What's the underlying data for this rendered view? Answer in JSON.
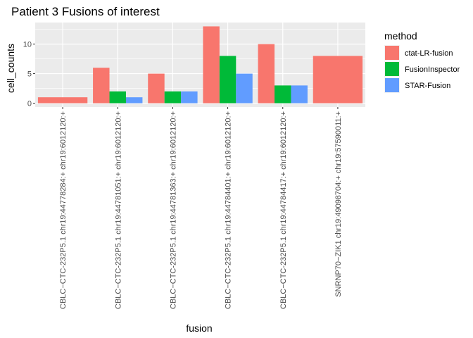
{
  "chart_data": {
    "type": "bar",
    "title": "Patient 3 Fusions of interest",
    "xlabel": "fusion",
    "ylabel": "cell_counts",
    "categories": [
      "CBLC−CTC-232P5.1 chr19:44778284:+ chr19:6012120:+",
      "CBLC−CTC-232P5.1 chr19:44781051:+ chr19:6012120:+",
      "CBLC−CTC-232P5.1 chr19:44781363:+ chr19:6012120:+",
      "CBLC−CTC-232P5.1 chr19:44784401:+ chr19:6012120:+",
      "CBLC−CTC-232P5.1 chr19:44784417:+ chr19:6012120:+",
      "SNRNP70−ZIK1 chr19:49098704:+ chr19:57590011:+"
    ],
    "series": [
      {
        "name": "ctat-LR-fusion",
        "color": "#F8766D",
        "values": [
          1,
          6,
          5,
          13,
          10,
          8
        ]
      },
      {
        "name": "FusionInspector",
        "color": "#00BA38",
        "values": [
          null,
          2,
          2,
          8,
          3,
          null
        ]
      },
      {
        "name": "STAR-Fusion",
        "color": "#619CFF",
        "values": [
          null,
          1,
          2,
          5,
          3,
          null
        ]
      }
    ],
    "ylim": [
      -0.65,
      13.65
    ],
    "yticks": [
      0,
      5,
      10
    ],
    "grid": true,
    "legend": {
      "title": "method",
      "position": "right"
    }
  }
}
